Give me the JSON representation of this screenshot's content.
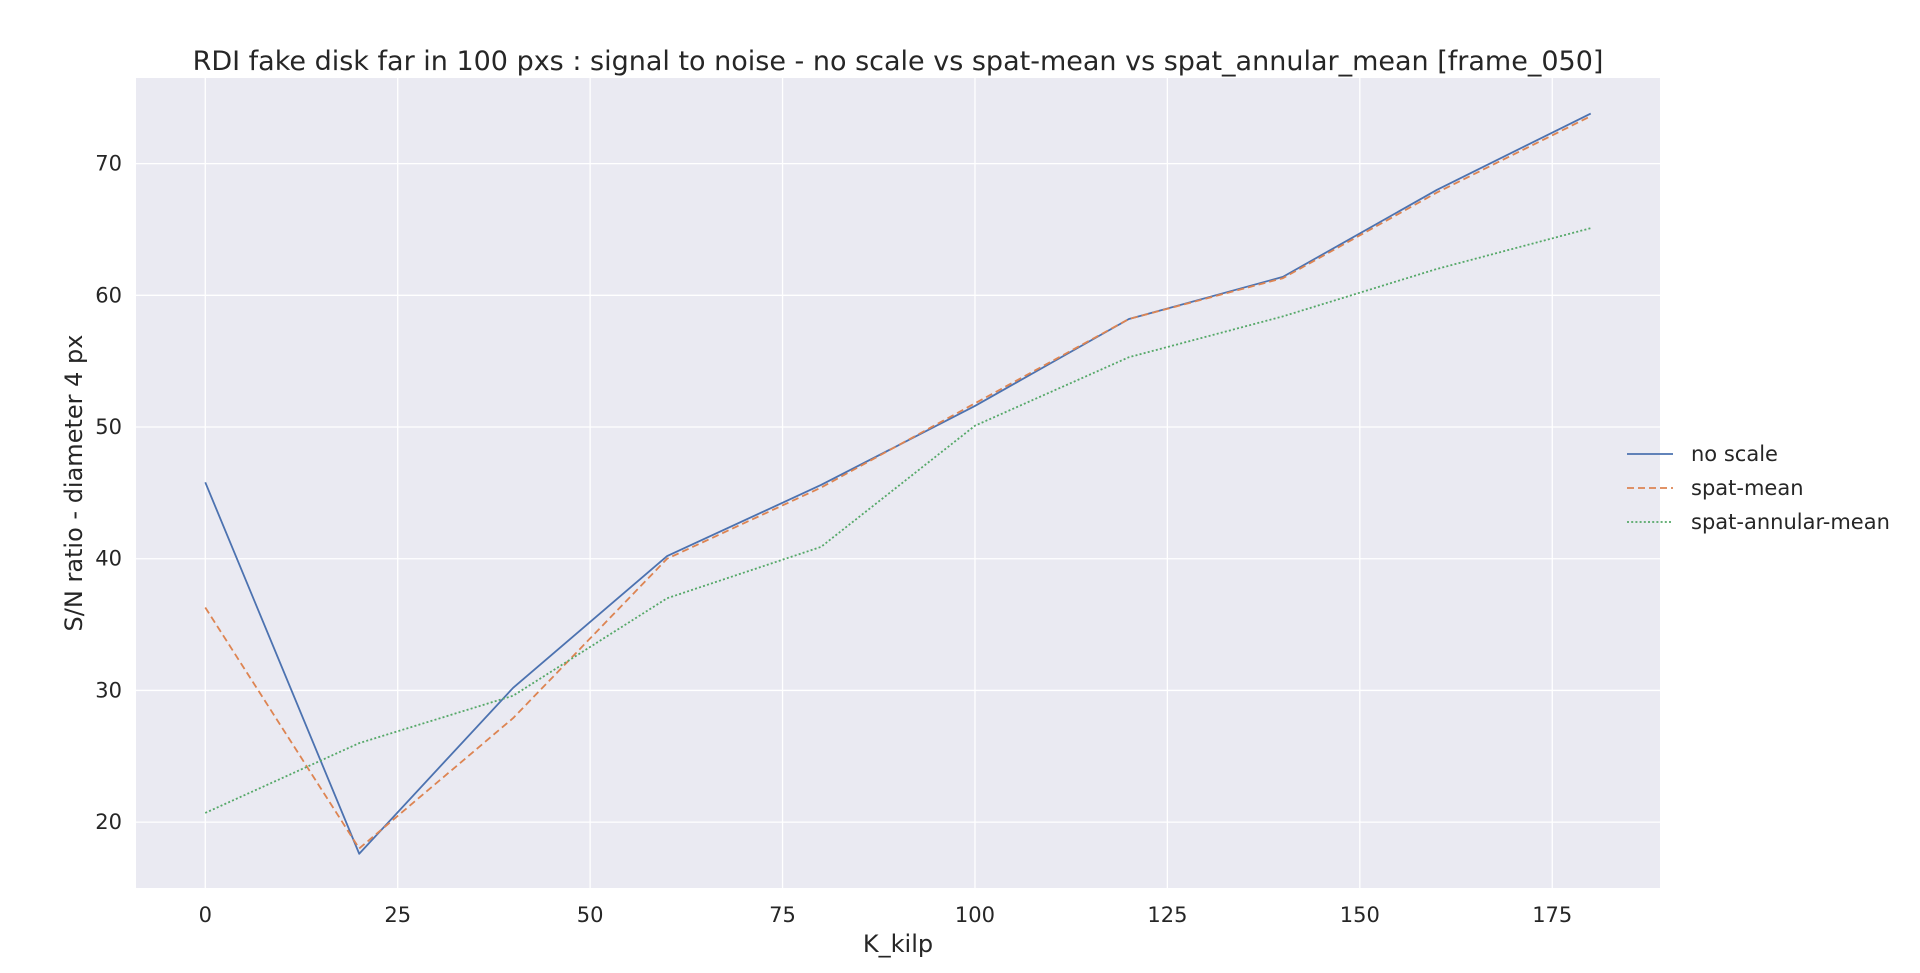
{
  "chart_data": {
    "type": "line",
    "title": "RDI fake disk far in 100 pxs : signal to noise - no scale vs spat-mean vs spat_annular_mean [frame_050]",
    "xlabel": "K_kilp",
    "ylabel": "S/N ratio - diameter 4 px",
    "xlim": [
      -9,
      189
    ],
    "ylim": [
      15,
      76.5
    ],
    "xticks": [
      0,
      25,
      50,
      75,
      100,
      125,
      150,
      175
    ],
    "yticks": [
      20,
      30,
      40,
      50,
      60,
      70
    ],
    "grid": true,
    "legend_position": "right",
    "x": [
      0,
      20,
      40,
      60,
      80,
      100,
      120,
      140,
      160,
      180
    ],
    "series": [
      {
        "name": "no scale",
        "color": "#4c72b0",
        "dash": "solid",
        "values": [
          45.8,
          17.6,
          30.2,
          40.2,
          45.6,
          51.6,
          58.2,
          61.4,
          68.0,
          73.8
        ]
      },
      {
        "name": "spat-mean",
        "color": "#dd8452",
        "dash": "dashed",
        "values": [
          36.3,
          18.0,
          27.9,
          40.0,
          45.4,
          51.8,
          58.2,
          61.3,
          67.8,
          73.6
        ]
      },
      {
        "name": "spat-annular-mean",
        "color": "#55a868",
        "dash": "dotted",
        "values": [
          20.7,
          26.0,
          29.6,
          37.0,
          40.9,
          50.1,
          55.3,
          58.4,
          62.0,
          65.1
        ]
      }
    ]
  }
}
